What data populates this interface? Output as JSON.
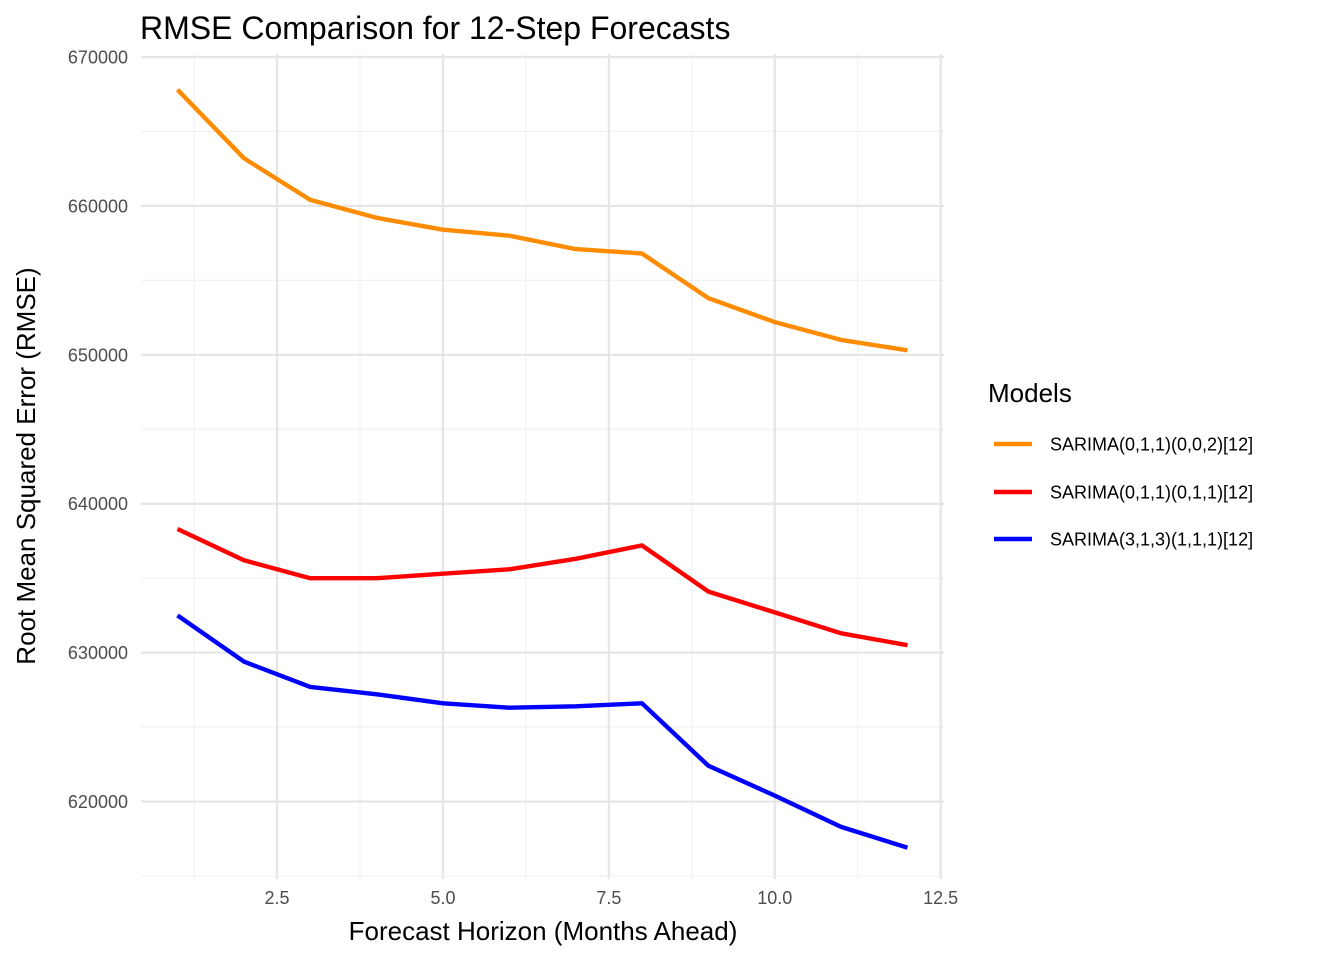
{
  "chart_data": {
    "type": "line",
    "title": "RMSE Comparison for 12-Step Forecasts",
    "xlabel": "Forecast Horizon (Months Ahead)",
    "ylabel": "Root Mean Squared Error (RMSE)",
    "xlim": [
      0.45,
      12.55
    ],
    "ylim": [
      614800,
      670200
    ],
    "x_ticks": [
      2.5,
      5.0,
      7.5,
      10.0,
      12.5
    ],
    "x_tick_labels": [
      "2.5",
      "5.0",
      "7.5",
      "10.0",
      "12.5"
    ],
    "y_ticks": [
      620000,
      630000,
      640000,
      650000,
      660000,
      670000
    ],
    "y_tick_labels": [
      "620000",
      "630000",
      "640000",
      "650000",
      "660000",
      "670000"
    ],
    "grid": true,
    "legend": {
      "title": "Models",
      "position": "right"
    },
    "x": [
      1,
      2,
      3,
      4,
      5,
      6,
      7,
      8,
      9,
      10,
      11,
      12
    ],
    "series": [
      {
        "name": "SARIMA(0,1,1)(0,0,2)[12]",
        "color": "#FF8C00",
        "values": [
          667800,
          663200,
          660400,
          659200,
          658400,
          658000,
          657100,
          656800,
          653800,
          652200,
          651000,
          650300
        ]
      },
      {
        "name": "SARIMA(0,1,1)(0,1,1)[12]",
        "color": "#FF0000",
        "values": [
          638300,
          636200,
          635000,
          635000,
          635300,
          635600,
          636300,
          637200,
          634100,
          632700,
          631300,
          630500
        ]
      },
      {
        "name": "SARIMA(3,1,3)(1,1,1)[12]",
        "color": "#0000FF",
        "values": [
          632500,
          629400,
          627700,
          627200,
          626600,
          626300,
          626400,
          626600,
          622400,
          620400,
          618300,
          616900
        ]
      }
    ]
  }
}
